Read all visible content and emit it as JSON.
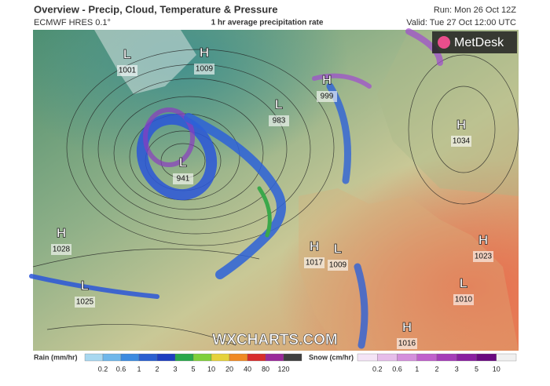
{
  "header": {
    "title": "Overview - Precip, Cloud, Temperature & Pressure",
    "model": "ECMWF HRES 0.1°",
    "subtitle": "1 hr average precipitation rate",
    "run": "Run: Mon 26 Oct 12Z",
    "valid": "Valid: Tue 27 Oct 12:00 UTC"
  },
  "logo": "MetDesk",
  "watermark": "WXCHARTS.COM",
  "pressure_centers": [
    {
      "type": "L",
      "value": 1001
    },
    {
      "type": "H",
      "value": 1009
    },
    {
      "type": "H",
      "value": 999
    },
    {
      "type": "L",
      "value": 983
    },
    {
      "type": "H",
      "value": 1034
    },
    {
      "type": "L",
      "value": 941
    },
    {
      "type": "H",
      "value": 1028
    },
    {
      "type": "L",
      "value": 1025
    },
    {
      "type": "H",
      "value": 1017
    },
    {
      "type": "L",
      "value": 1009
    },
    {
      "type": "H",
      "value": 1023
    },
    {
      "type": "L",
      "value": 1010
    },
    {
      "type": "H",
      "value": 1016
    }
  ],
  "legend": {
    "rain": {
      "label": "Rain (mm/hr)",
      "ticks": [
        0.2,
        0.6,
        1,
        2,
        3,
        5,
        10,
        20,
        40,
        80,
        120
      ],
      "colors": [
        "#a8d8f0",
        "#6fb7ea",
        "#3b8be0",
        "#2a5fd0",
        "#1d3ec0",
        "#2aa84a",
        "#7fd03a",
        "#e6d23a",
        "#f08a24",
        "#d82c2c",
        "#9a2a9a",
        "#404040"
      ]
    },
    "snow": {
      "label": "Snow (cm/hr)",
      "ticks": [
        0.2,
        0.6,
        1,
        2,
        3,
        5,
        10
      ],
      "colors": [
        "#f4e4f6",
        "#e6bdea",
        "#d48fdc",
        "#c060cc",
        "#a53cb8",
        "#8a1fa0",
        "#6a0a80",
        "#f0f0f0"
      ]
    }
  }
}
